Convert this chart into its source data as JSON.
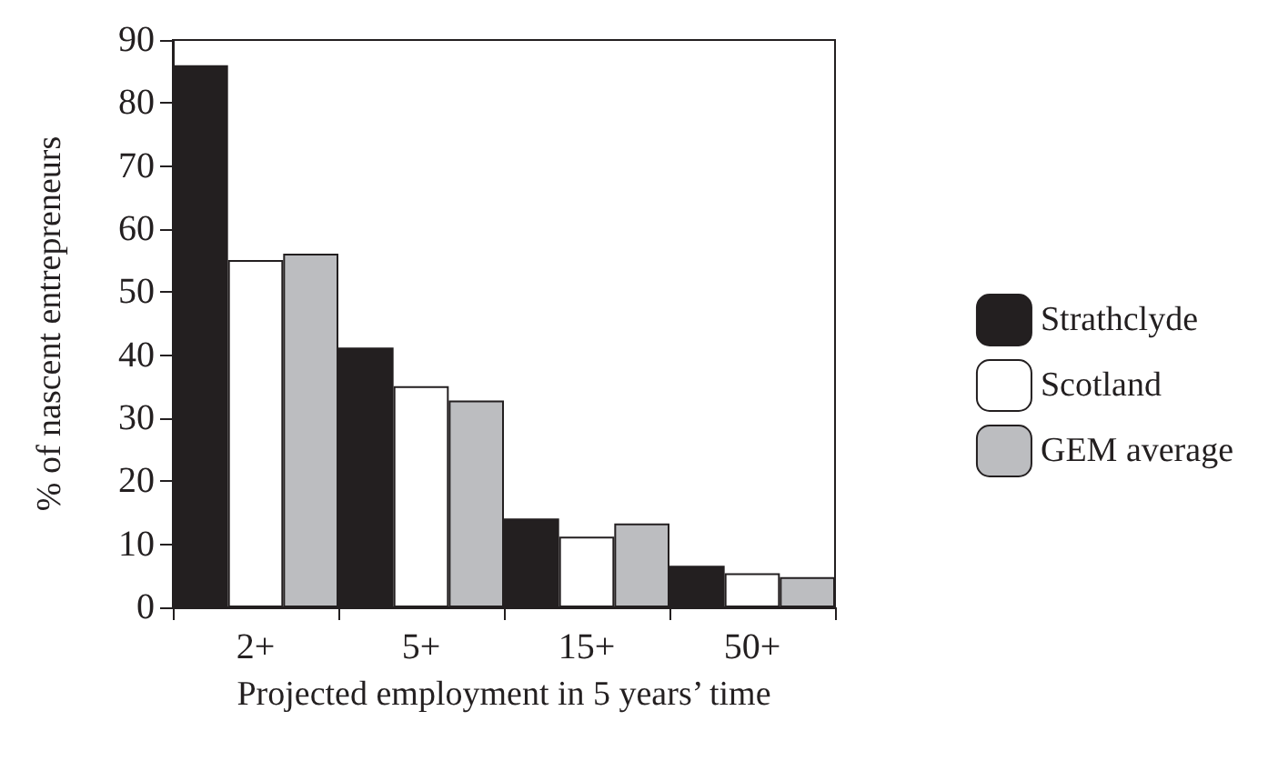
{
  "chart_data": {
    "type": "bar",
    "xlabel": "Projected employment in 5 years’ time",
    "ylabel": "% of nascent entrepreneurs",
    "categories": [
      "2+",
      "5+",
      "15+",
      "50+"
    ],
    "series": [
      {
        "name": "Strathclyde",
        "color": "#231f20",
        "values": [
          86,
          41.2,
          14.1,
          6.6
        ]
      },
      {
        "name": "Scotland",
        "color": "#ffffff",
        "values": [
          55.1,
          35.1,
          11.2,
          5.4
        ]
      },
      {
        "name": "GEM average",
        "color": "#bcbdc0",
        "values": [
          56.1,
          32.8,
          13.3,
          4.8
        ]
      }
    ],
    "ylim": [
      0,
      90
    ],
    "yticks": [
      0,
      10,
      20,
      30,
      40,
      50,
      60,
      70,
      80,
      90
    ],
    "grid": false,
    "legend": "right"
  }
}
